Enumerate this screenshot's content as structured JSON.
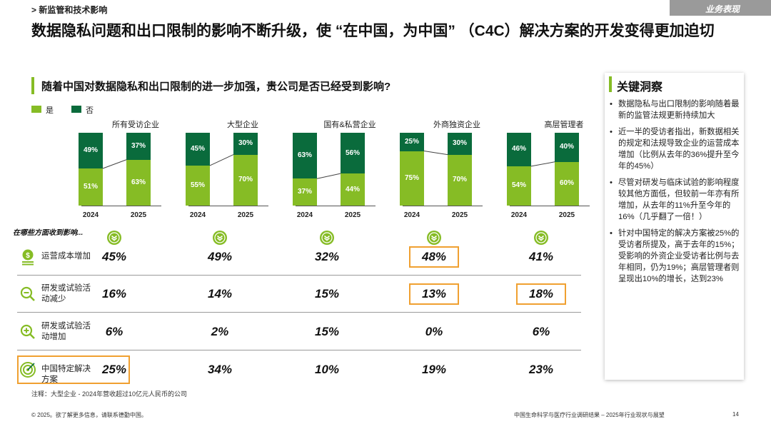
{
  "header": {
    "section": "> 新监管和技术影响",
    "badge": "业务表现"
  },
  "title": "数据隐私问题和出口限制的影响不断升级，使 “在中国，为中国” （C4C）解决方案的开发变得更加迫切",
  "question": "随着中国对数据隐私和出口限制的进一步加强，贵公司是否已经受到影响?",
  "legend": {
    "yes": "是",
    "no": "否"
  },
  "colors": {
    "yes": "#86bc25",
    "no": "#0a6b3c",
    "highlight": "#f0a030"
  },
  "chart_data": {
    "type": "bar",
    "stacked": true,
    "normalized": true,
    "unit": "%",
    "years": [
      "2024",
      "2025"
    ],
    "series_names": [
      "是",
      "否"
    ],
    "groups": [
      {
        "name": "所有受访企业",
        "yes": [
          51,
          63
        ],
        "no": [
          49,
          37
        ]
      },
      {
        "name": "大型企业",
        "yes": [
          55,
          70
        ],
        "no": [
          45,
          30
        ]
      },
      {
        "name": "国有&私营企业",
        "yes": [
          37,
          44
        ],
        "no": [
          63,
          56
        ]
      },
      {
        "name": "外商独资企业",
        "yes": [
          75,
          70
        ],
        "no": [
          25,
          30
        ]
      },
      {
        "name": "高层管理者",
        "yes": [
          54,
          60
        ],
        "no": [
          46,
          40
        ]
      }
    ]
  },
  "impact": {
    "header": "在哪些方面收到影响...",
    "rows": [
      {
        "icon": "cost-icon",
        "label": "运营成本增加",
        "values": [
          "45%",
          "49%",
          "32%",
          "48%",
          "41%"
        ],
        "highlight": [
          false,
          false,
          false,
          true,
          false
        ],
        "label_highlight": false
      },
      {
        "icon": "minus-magnifier-icon",
        "label": "研发或试验活动减少",
        "values": [
          "16%",
          "14%",
          "15%",
          "13%",
          "18%"
        ],
        "highlight": [
          false,
          false,
          false,
          true,
          true
        ],
        "label_highlight": false
      },
      {
        "icon": "plus-magnifier-icon",
        "label": "研发或试验活动增加",
        "values": [
          "6%",
          "2%",
          "15%",
          "0%",
          "6%"
        ],
        "highlight": [
          false,
          false,
          false,
          false,
          false
        ],
        "label_highlight": false
      },
      {
        "icon": "target-icon",
        "label": "中国特定解决方案",
        "values": [
          "25%",
          "34%",
          "10%",
          "19%",
          "23%"
        ],
        "highlight": [
          false,
          false,
          false,
          false,
          false
        ],
        "label_highlight": true
      }
    ]
  },
  "note": "注释：大型企业 - 2024年营收超过10亿元人民币的公司",
  "insights": {
    "title": "关键洞察",
    "items": [
      "数据隐私与出口限制的影响随着最新的监管法规更新持续加大",
      "近一半的受访者指出，新数据相关的规定和法规导致企业的运营成本增加（比例从去年的36%提升至今年的45%）",
      "尽管对研发与临床试验的影响程度较其他方面低，但较前一年亦有所增加，从去年的11%升至今年的16%（几乎翻了一倍！）",
      "针对中国特定的解决方案被25%的受访者所提及，高于去年的15%；受影响的外资企业受访者比例与去年相同，仍为19%；高层管理者则呈现出10%的增长，达到23%"
    ]
  },
  "footer": {
    "left": "© 2025。欲了解更多信息，请联系德勤中国。",
    "right": "中国生命科学与医疗行业调研结果 – 2025年行业现状与展望",
    "page": "14"
  }
}
